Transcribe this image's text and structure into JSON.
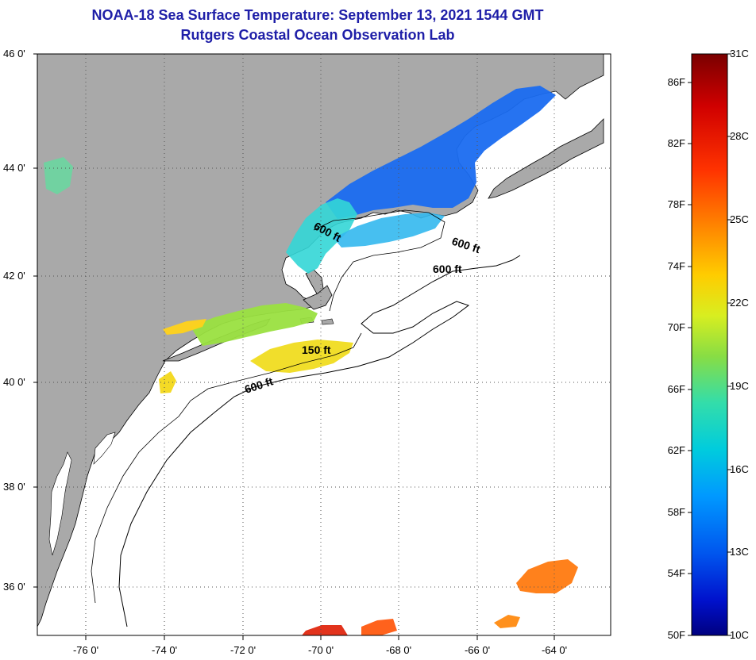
{
  "header": {
    "title": "NOAA-18 Sea Surface Temperature:  September 13, 2021 1544 GMT",
    "subtitle": "Rutgers Coastal Ocean Observation Lab"
  },
  "map": {
    "lat_labels": [
      "46 0'",
      "44 0'",
      "42 0'",
      "40 0'",
      "38 0'",
      "36 0'"
    ],
    "lon_labels": [
      "-76 0'",
      "-74 0'",
      "-72 0'",
      "-70 0'",
      "-68 0'",
      "-66 0'",
      "-64 0'"
    ],
    "contour_labels": [
      "600 ft",
      "600 ft",
      "600 ft",
      "150 ft",
      "600 ft"
    ],
    "colors": {
      "land": "#a9a9a9",
      "ocean": "#ffffff",
      "grid": "#555555"
    }
  },
  "colorbar": {
    "fahrenheit_labels": [
      "86F",
      "82F",
      "78F",
      "74F",
      "70F",
      "66F",
      "62F",
      "58F",
      "54F",
      "50F"
    ],
    "celsius_labels": [
      "31C",
      "28C",
      "25C",
      "22C",
      "19C",
      "16C",
      "13C",
      "10C"
    ],
    "gradient_colors": [
      "#7a0000",
      "#d00000",
      "#ff3300",
      "#ff8800",
      "#ffcc00",
      "#d8ee20",
      "#88dd44",
      "#33ddaa",
      "#00ccdd",
      "#0099ff",
      "#0055ee",
      "#0011cc",
      "#000080"
    ]
  }
}
